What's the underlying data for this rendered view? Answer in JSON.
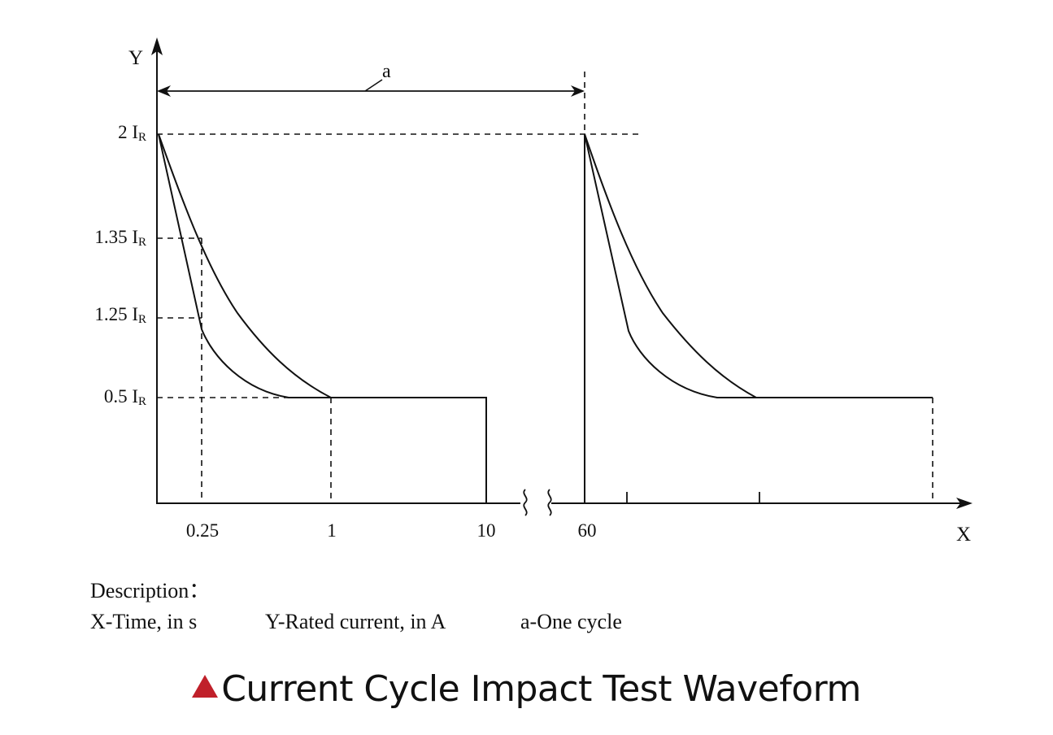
{
  "axes": {
    "y_name": "Y",
    "x_name": "X"
  },
  "cycle_label": "a",
  "y_levels": [
    {
      "coef": "2",
      "symbol": "I",
      "sub": "R"
    },
    {
      "coef": "1.35",
      "symbol": "I",
      "sub": "R"
    },
    {
      "coef": "1.25",
      "symbol": "I",
      "sub": "R"
    },
    {
      "coef": "0.5",
      "symbol": "I",
      "sub": "R"
    }
  ],
  "x_ticks": [
    "0.25",
    "1",
    "10",
    "60"
  ],
  "description": {
    "heading": "Description：",
    "x_desc": "X-Time, in s",
    "y_desc": "Y-Rated current, in A",
    "a_desc": "a-One cycle"
  },
  "title": "Current Cycle Impact Test Waveform",
  "colors": {
    "accent_triangle": "#c0202a",
    "line": "#111111"
  }
}
